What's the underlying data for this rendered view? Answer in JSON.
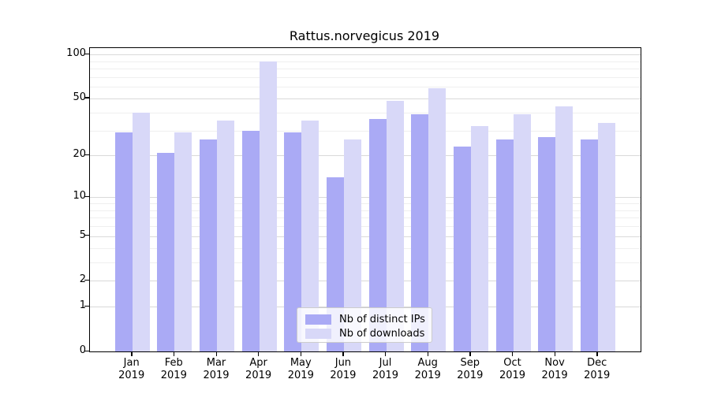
{
  "title": "Rattus.norvegicus 2019",
  "chart_data": {
    "type": "bar",
    "title": "Rattus.norvegicus 2019",
    "x_categories": [
      {
        "month": "Jan",
        "year": "2019"
      },
      {
        "month": "Feb",
        "year": "2019"
      },
      {
        "month": "Mar",
        "year": "2019"
      },
      {
        "month": "Apr",
        "year": "2019"
      },
      {
        "month": "May",
        "year": "2019"
      },
      {
        "month": "Jun",
        "year": "2019"
      },
      {
        "month": "Jul",
        "year": "2019"
      },
      {
        "month": "Aug",
        "year": "2019"
      },
      {
        "month": "Sep",
        "year": "2019"
      },
      {
        "month": "Oct",
        "year": "2019"
      },
      {
        "month": "Nov",
        "year": "2019"
      },
      {
        "month": "Dec",
        "year": "2019"
      }
    ],
    "series": [
      {
        "name": "Nb of distinct IPs",
        "color": "#aaaaf5",
        "values": [
          29,
          21,
          26,
          30,
          29,
          14,
          36,
          39,
          23,
          26,
          27,
          26
        ]
      },
      {
        "name": "Nb of downloads",
        "color": "#d8d8f8",
        "values": [
          40,
          29,
          35,
          90,
          35,
          26,
          48,
          59,
          32,
          39,
          44,
          34
        ]
      }
    ],
    "y_scale": "log1p",
    "y_major_ticks": [
      0,
      1,
      2,
      5,
      10,
      20,
      50,
      100
    ],
    "y_minor_ticks": [
      3,
      4,
      6,
      7,
      8,
      9,
      30,
      40,
      60,
      70,
      80,
      90
    ],
    "ylim": [
      0,
      112
    ],
    "xlabel": "",
    "ylabel": "",
    "grid": "both",
    "grid_major_color": "#d9d9d9",
    "grid_minor_color": "#efefef",
    "legend_position": "lower center",
    "legend_entries": [
      "Nb of distinct IPs",
      "Nb of downloads"
    ]
  }
}
